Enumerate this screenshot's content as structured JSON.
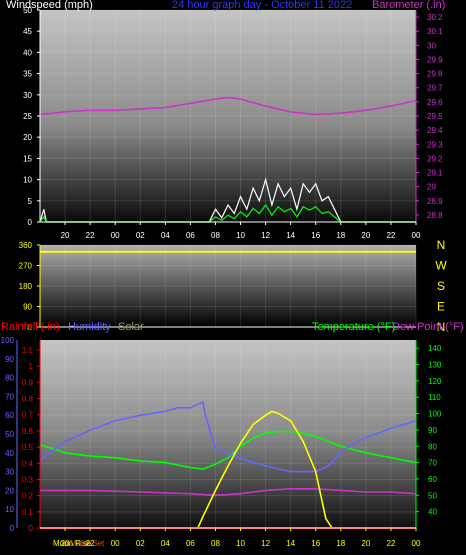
{
  "chart_data": [
    {
      "type": "line",
      "title": "24 hour graph day - October 11 2022",
      "ylabel": "Windspeed (mph)",
      "y2label": "Barometer (.in)",
      "x_ticks": [
        "20",
        "22",
        "00",
        "02",
        "04",
        "06",
        "08",
        "10",
        "12",
        "14",
        "16",
        "18",
        "20",
        "22",
        "00"
      ],
      "ylim": [
        0,
        50
      ],
      "y_ticks": [
        0,
        5,
        10,
        15,
        20,
        25,
        30,
        35,
        40,
        45,
        50
      ],
      "y2lim": [
        28.75,
        30.25
      ],
      "y2_ticks": [
        "28.8",
        "28.9",
        "29",
        "29.1",
        "29.2",
        "29.3",
        "29.4",
        "29.5",
        "29.6",
        "29.7",
        "29.8",
        "29.9",
        "30",
        "30.1",
        "30.2"
      ],
      "colors": {
        "windspeed": "#ffffff",
        "gust": "#ffffff",
        "avg_wind": "#00ff00",
        "barometer": "#cc33cc",
        "axis_right": "#cc33cc",
        "title": "#3333ff"
      },
      "series": [
        {
          "name": "Barometer (.in)",
          "axis": "right",
          "x": [
            -6,
            -4,
            -2,
            0,
            2,
            4,
            6,
            8,
            9,
            10,
            12,
            14,
            16,
            18,
            20,
            22,
            24
          ],
          "values": [
            29.51,
            29.53,
            29.54,
            29.54,
            29.55,
            29.56,
            29.59,
            29.62,
            29.63,
            29.62,
            29.57,
            29.53,
            29.51,
            29.52,
            29.54,
            29.57,
            29.61
          ]
        },
        {
          "name": "Windspeed (mph)",
          "axis": "left",
          "x": [
            -6,
            -5.7,
            -5.5,
            6,
            7.5,
            8,
            8.5,
            9,
            9.5,
            10,
            10.5,
            11,
            11.5,
            12,
            12.5,
            13,
            13.5,
            14,
            14.5,
            15,
            15.5,
            16,
            16.5,
            17,
            17.5,
            18,
            19,
            24
          ],
          "values": [
            0,
            3,
            0,
            0,
            0,
            3,
            1,
            4,
            2,
            6,
            3,
            8,
            5,
            10,
            4,
            9,
            6,
            8,
            3,
            9,
            7,
            9,
            5,
            6,
            3,
            0,
            0,
            0
          ]
        }
      ]
    },
    {
      "type": "scatter",
      "title": "",
      "ylabel": "",
      "y_ticks": [
        0,
        90,
        180,
        270,
        360
      ],
      "ylim": [
        0,
        360
      ],
      "direction_labels": [
        "N",
        "W",
        "S",
        "E",
        "N"
      ],
      "colors": {
        "direction": "#ffff00",
        "letters": "#ffff00"
      },
      "series": [
        {
          "name": "Wind direction",
          "x": [
            -6,
            0,
            6,
            12,
            18,
            24
          ],
          "values": [
            330,
            330,
            330,
            330,
            330,
            330
          ]
        }
      ]
    },
    {
      "type": "line",
      "title": "",
      "labels": {
        "rainfall": "Rainfall (.in)",
        "humidity": "Humidity",
        "solar": "Solar",
        "temperature": "Temperature (°F)",
        "dewpoint": "Dew Point (°F)"
      },
      "colors": {
        "rainfall": "#ff0000",
        "humidity": "#6666ff",
        "solar": "#999966",
        "temperature": "#00ff00",
        "dewpoint": "#cc33cc",
        "axis_left": "#ff0000",
        "axis_humidity": "#6666ff",
        "axis_right": "#00ff00",
        "solar_curve": "#ffff00",
        "moon": "#ff6600"
      },
      "rain_ticks": [
        "0",
        "0.1",
        "0.2",
        "0.3",
        "0.4",
        "0.5",
        "0.6",
        "0.7",
        "0.8",
        "0.9",
        "1",
        "1.1"
      ],
      "rain_lim": [
        0,
        1.1
      ],
      "humidity_ticks": [
        "0",
        "10",
        "20",
        "30",
        "40",
        "50",
        "60",
        "70",
        "80",
        "90",
        "100"
      ],
      "temp_ticks": [
        "40",
        "50",
        "60",
        "70",
        "80",
        "90",
        "100",
        "110",
        "120",
        "130",
        "140"
      ],
      "temp_lim": [
        30,
        145
      ],
      "x_ticks": [
        "20",
        "22",
        "00",
        "02",
        "04",
        "06",
        "08",
        "10",
        "12",
        "14",
        "16",
        "18",
        "20",
        "22",
        "00"
      ],
      "moon_labels": {
        "rise": "Moon Rise",
        "set": "Moon Set"
      },
      "series": [
        {
          "name": "Temperature (°F)",
          "x": [
            -6,
            -4,
            -2,
            0,
            2,
            4,
            6,
            7,
            8,
            9,
            10,
            11,
            12,
            13,
            14,
            15,
            16,
            17,
            18,
            19,
            20,
            22,
            24
          ],
          "values": [
            81,
            76,
            74,
            73,
            71,
            70,
            67,
            66,
            69,
            73,
            80,
            85,
            88,
            89,
            89,
            88,
            86,
            83,
            80,
            78,
            76,
            73,
            70
          ]
        },
        {
          "name": "Dew Point (°F)",
          "x": [
            -6,
            -2,
            2,
            6,
            8,
            10,
            12,
            14,
            16,
            18,
            20,
            22,
            24
          ],
          "values": [
            53,
            53,
            52,
            51,
            50,
            51,
            53,
            54,
            54,
            53,
            52,
            52,
            51
          ]
        },
        {
          "name": "Humidity",
          "x": [
            -6,
            -4,
            -2,
            0,
            2,
            4,
            5,
            6,
            7,
            7.2,
            8,
            10,
            12,
            14,
            16,
            17,
            18,
            19,
            20,
            22,
            24
          ],
          "values": [
            36,
            46,
            52,
            57,
            60,
            62,
            64,
            64,
            67,
            60,
            42,
            37,
            33,
            30,
            30,
            33,
            40,
            45,
            48,
            53,
            57
          ]
        },
        {
          "name": "Solar",
          "x": [
            -6,
            6.6,
            7,
            8,
            9,
            10,
            11,
            12,
            12.5,
            13,
            14,
            15,
            16,
            16.8,
            17.3,
            24
          ],
          "values": [
            0,
            0,
            6,
            20,
            33,
            45,
            55,
            60,
            62,
            61,
            57,
            46,
            30,
            5,
            0,
            0
          ]
        },
        {
          "name": "Rainfall (.in)",
          "x": [
            -6,
            24
          ],
          "values": [
            0,
            0
          ]
        }
      ]
    }
  ]
}
